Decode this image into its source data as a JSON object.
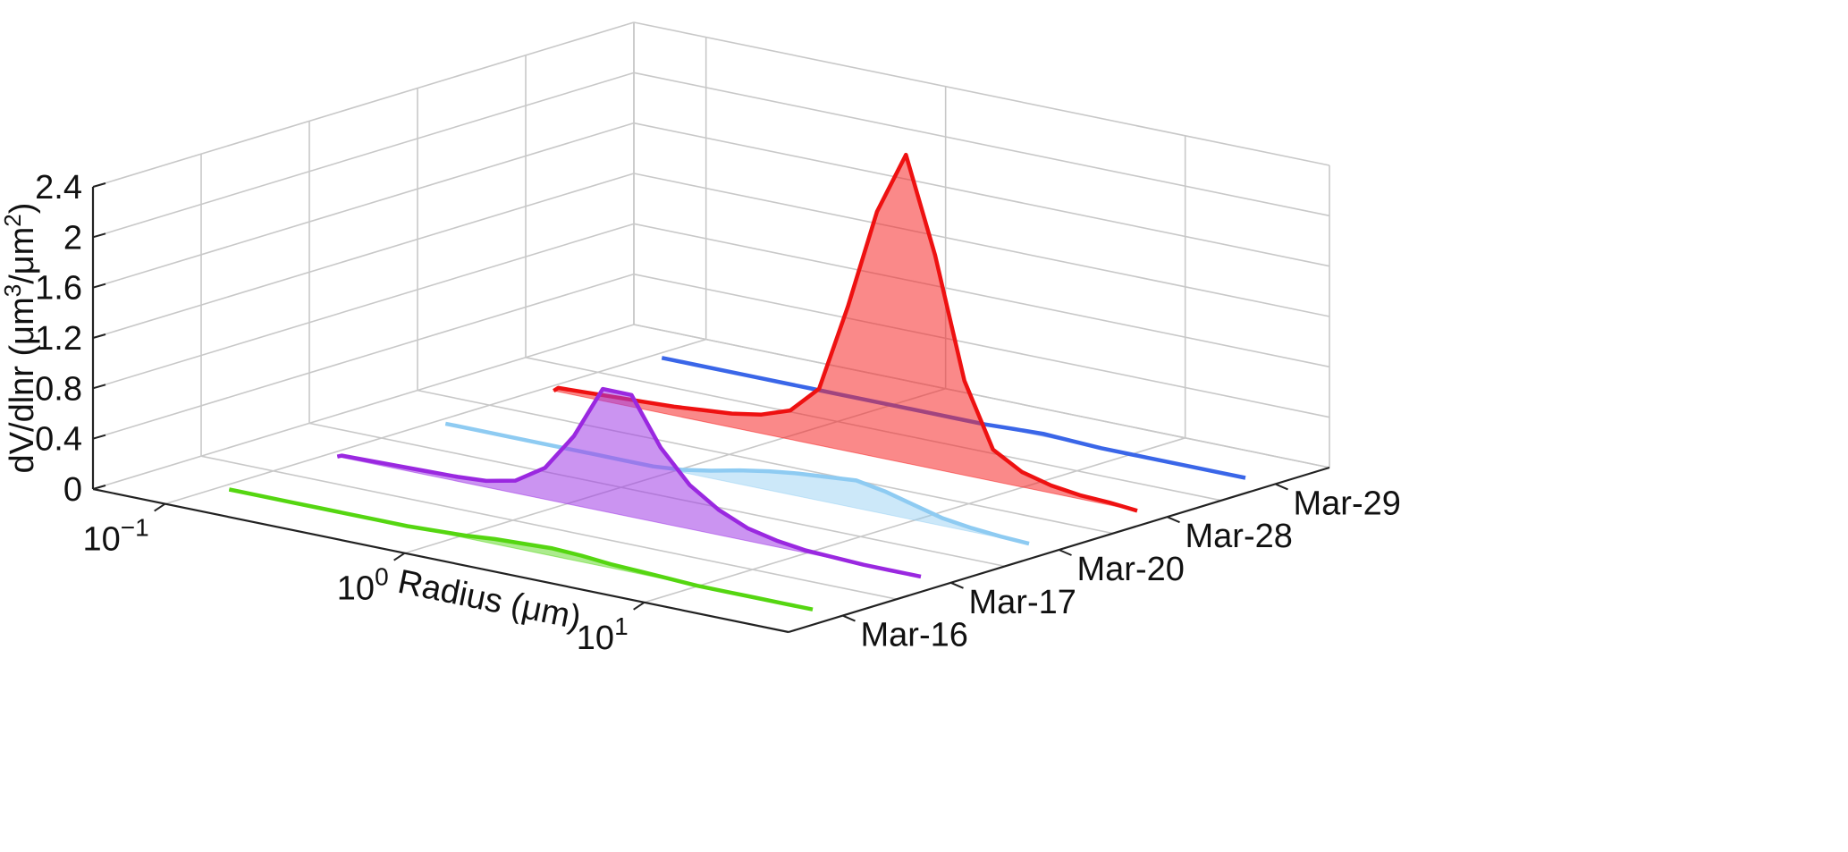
{
  "chart_data": {
    "type": "line",
    "subtype": "3d-waterfall",
    "xlabel": "Radius (μm)",
    "xscale": "log",
    "xlim": [
      0.05,
      40
    ],
    "xticks": [
      {
        "value": 0.1,
        "base": "10",
        "exp": "−1"
      },
      {
        "value": 1,
        "base": "10",
        "exp": "0"
      },
      {
        "value": 10,
        "base": "10",
        "exp": "1"
      }
    ],
    "ylabel": {
      "main": "dV/dlnr (μm",
      "sup1": "3",
      "mid": "/μm",
      "sup2": "2",
      "end": ")"
    },
    "ylim": [
      0,
      2.4
    ],
    "yticks": [
      "0",
      "0.4",
      "0.8",
      "1.2",
      "1.6",
      "2",
      "2.4"
    ],
    "grid": true,
    "colors": {
      "Mar-16": "#55d611",
      "Mar-17": "#9a28e0",
      "Mar-20": "#8ecbf2",
      "Mar-28": "#ee1111",
      "Mar-29": "#3a66e8"
    },
    "fill_colors": {
      "Mar-16": "rgba(90,215,30,0.5)",
      "Mar-17": "rgba(160,60,230,0.55)",
      "Mar-20": "rgba(142,203,242,0.45)",
      "Mar-28": "rgba(245,40,40,0.55)",
      "Mar-29": "rgba(58,102,232,0.4)"
    },
    "x": [
      0.05,
      0.066,
      0.087,
      0.115,
      0.152,
      0.2,
      0.265,
      0.35,
      0.46,
      0.61,
      0.81,
      1.07,
      1.41,
      1.86,
      2.46,
      3.25,
      4.3,
      5.7,
      7.5,
      9.9,
      13.1,
      17.3,
      22.9,
      30.3,
      40
    ],
    "series": [
      {
        "name": "Mar-16",
        "values": [
          0,
          0,
          0,
          0,
          0,
          0,
          0,
          0,
          0,
          0,
          0.01,
          0.02,
          0.04,
          0.05,
          0.06,
          0.05,
          0.03,
          0.02,
          0.01,
          0,
          0,
          0,
          0,
          0,
          0
        ]
      },
      {
        "name": "Mar-17",
        "values": [
          0,
          0.005,
          0.01,
          0.015,
          0.02,
          0.025,
          0.03,
          0.035,
          0.05,
          0.1,
          0.25,
          0.55,
          0.97,
          0.97,
          0.6,
          0.35,
          0.2,
          0.1,
          0.05,
          0.02,
          0.01,
          0,
          0,
          0,
          0
        ]
      },
      {
        "name": "Mar-20",
        "values": [
          0,
          0,
          0,
          0,
          0,
          0,
          0,
          0,
          0,
          0,
          0,
          0.02,
          0.06,
          0.11,
          0.15,
          0.18,
          0.2,
          0.22,
          0.18,
          0.12,
          0.06,
          0.03,
          0.01,
          0,
          0
        ]
      },
      {
        "name": "Mar-28",
        "values": [
          0.08,
          0.06,
          0.04,
          0.03,
          0.04,
          0.05,
          0.06,
          0.07,
          0.09,
          0.11,
          0.15,
          0.23,
          0.45,
          1.15,
          1.95,
          2.45,
          1.7,
          0.75,
          0.25,
          0.12,
          0.06,
          0.03,
          0.02,
          0.01,
          0
        ]
      },
      {
        "name": "Mar-29",
        "values": [
          0,
          0,
          0,
          0,
          0,
          0,
          0,
          0,
          0,
          0,
          0,
          0,
          0,
          0,
          0,
          0.01,
          0.02,
          0.01,
          0,
          0,
          0,
          0,
          0,
          0,
          0
        ]
      }
    ],
    "legend": "none"
  }
}
